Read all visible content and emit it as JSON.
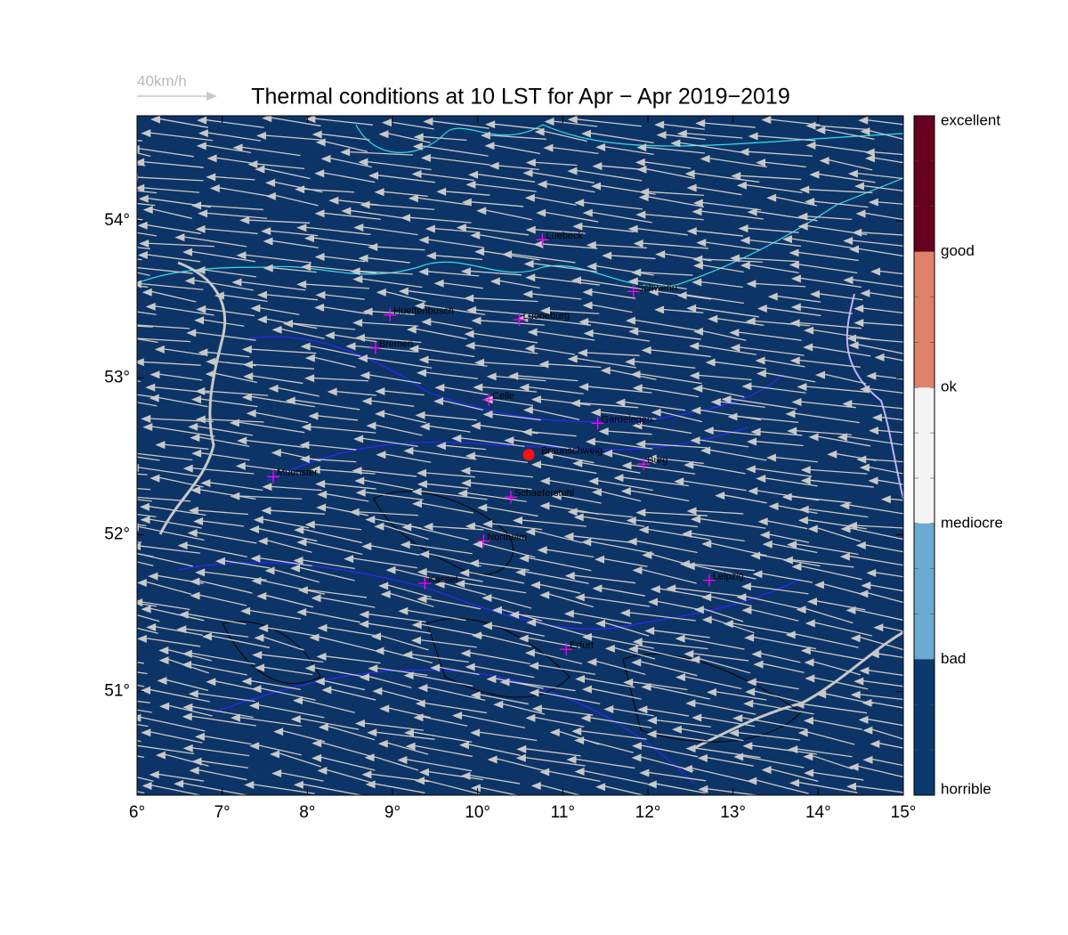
{
  "title": "Thermal conditions at 10 LST for Apr − Apr  2019−2019",
  "wind_scale": "40km/h",
  "xlim": [
    6,
    15.0
  ],
  "ylim": [
    50.34,
    54.67
  ],
  "xticks": [
    {
      "value": 6,
      "label": "6°"
    },
    {
      "value": 7,
      "label": "7°"
    },
    {
      "value": 8,
      "label": "8°"
    },
    {
      "value": 9,
      "label": "9°"
    },
    {
      "value": 10,
      "label": "10°"
    },
    {
      "value": 11,
      "label": "11°"
    },
    {
      "value": 12,
      "label": "12°"
    },
    {
      "value": 13,
      "label": "13°"
    },
    {
      "value": 14,
      "label": "14°"
    },
    {
      "value": 15,
      "label": "15°"
    }
  ],
  "yticks": [
    {
      "value": 51,
      "label": "51°"
    },
    {
      "value": 52,
      "label": "52°"
    },
    {
      "value": 53,
      "label": "53°"
    },
    {
      "value": 54,
      "label": "54°"
    }
  ],
  "colorbar": {
    "labels": [
      "excellent",
      "good",
      "ok",
      "mediocre",
      "bad",
      "horrible"
    ],
    "colors": [
      "#67001f",
      "#e0826a",
      "#f4f4f4",
      "#6aaad3",
      "#0b3a6e"
    ]
  },
  "map_color": "#0d3466",
  "cities": [
    {
      "name": "Luebeck",
      "lon": 10.76,
      "lat": 53.88,
      "marker": "cross"
    },
    {
      "name": "Schwerin",
      "lon": 11.83,
      "lat": 53.55,
      "marker": "cross"
    },
    {
      "name": "Huettenbusch",
      "lon": 8.97,
      "lat": 53.4,
      "marker": "cross"
    },
    {
      "name": "Lueneburg",
      "lon": 10.49,
      "lat": 53.37,
      "marker": "cross"
    },
    {
      "name": "Bremen",
      "lon": 8.8,
      "lat": 53.19,
      "marker": "cross"
    },
    {
      "name": "Celle",
      "lon": 10.13,
      "lat": 52.86,
      "marker": "cross"
    },
    {
      "name": "Gardelegen",
      "lon": 11.41,
      "lat": 52.71,
      "marker": "cross"
    },
    {
      "name": "Braunschweig",
      "lon": 10.6,
      "lat": 52.51,
      "marker": "dot"
    },
    {
      "name": "Burg",
      "lon": 11.95,
      "lat": 52.45,
      "marker": "cross"
    },
    {
      "name": "Muenster",
      "lon": 7.6,
      "lat": 52.37,
      "marker": "cross"
    },
    {
      "name": "Schaeferstuhl",
      "lon": 10.39,
      "lat": 52.24,
      "marker": "cross"
    },
    {
      "name": "Northeim",
      "lon": 10.07,
      "lat": 51.96,
      "marker": "cross"
    },
    {
      "name": "Kassel",
      "lon": 9.38,
      "lat": 51.69,
      "marker": "cross"
    },
    {
      "name": "Leipzig",
      "lon": 12.72,
      "lat": 51.71,
      "marker": "cross"
    },
    {
      "name": "Erfurt",
      "lon": 11.04,
      "lat": 51.27,
      "marker": "cross"
    }
  ]
}
